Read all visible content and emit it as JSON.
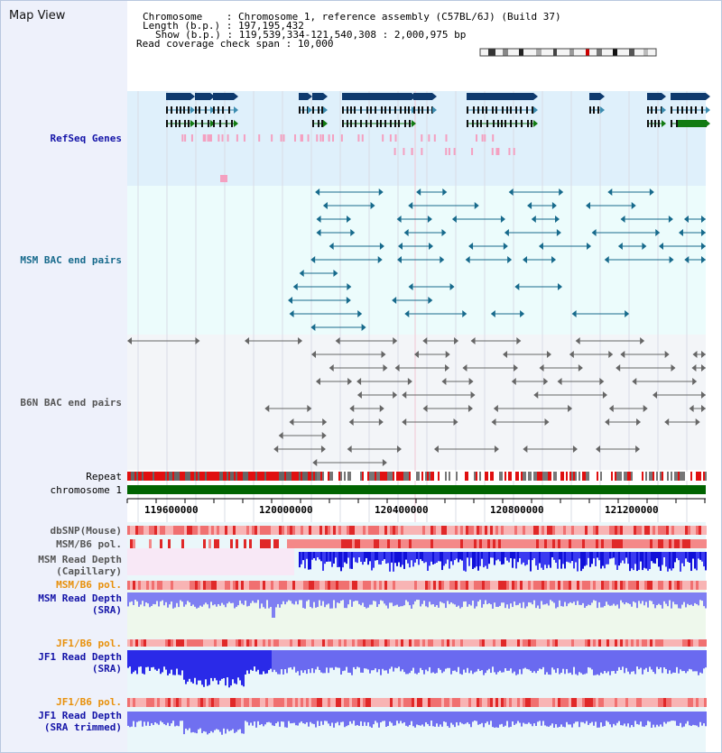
{
  "title": "Map View",
  "header": {
    "chromosome_label": "Chromosome    : ",
    "chromosome_value": "Chromosome 1, reference assembly (C57BL/6J) (Build 37)",
    "length_label": "Length (b.p.) : ",
    "length_value": "197,195,432",
    "show_label": "Show (b.p.) : ",
    "show_value": "119,539,334-121,540,308 : 2,000,975 bp",
    "coverage_label": "Read coverage check span : ",
    "coverage_value": "10,000"
  },
  "tracks": {
    "refseq": "RefSeq Genes",
    "msm_bac": "MSM BAC end pairs",
    "b6n_bac": "B6N BAC end pairs",
    "repeat": "Repeat",
    "chromosome": "chromosome 1",
    "dbsnp": "dbSNP(Mouse)",
    "msm_b6_pol_1": "MSM/B6 pol.",
    "msm_depth_cap_1": "MSM Read Depth",
    "msm_depth_cap_2": "(Capillary)",
    "msm_b6_pol_2": "MSM/B6 pol.",
    "msm_depth_sra_1": "MSM Read Depth",
    "msm_depth_sra_2": "(SRA)",
    "jf1_b6_pol_1": "JF1/B6 pol.",
    "jf1_depth_sra_1": "JF1 Read Depth",
    "jf1_depth_sra_2": "(SRA)",
    "jf1_b6_pol_2": "JF1/B6 pol.",
    "jf1_depth_trim_1": "JF1 Read Depth",
    "jf1_depth_trim_2": "(SRA trimmed)"
  },
  "axis": {
    "ticks": [
      "119600000",
      "120000000",
      "120400000",
      "120800000",
      "121200000"
    ]
  },
  "colors": {
    "refseq_bg": "#dff0fb",
    "msm_bg": "#ecfcfc",
    "b6n_bg": "#f3f5f8",
    "gene_dark": "#0e3a6e",
    "gene_mid": "#3b8cb0",
    "gene_green": "#127b12",
    "msm_teal": "#176a8c",
    "b6n_gray": "#666666",
    "chromosome_green": "#006400",
    "depth_blue": "#1f1fe0",
    "depth_light": "#7f7ff2",
    "pol_red": "#e03030"
  }
}
